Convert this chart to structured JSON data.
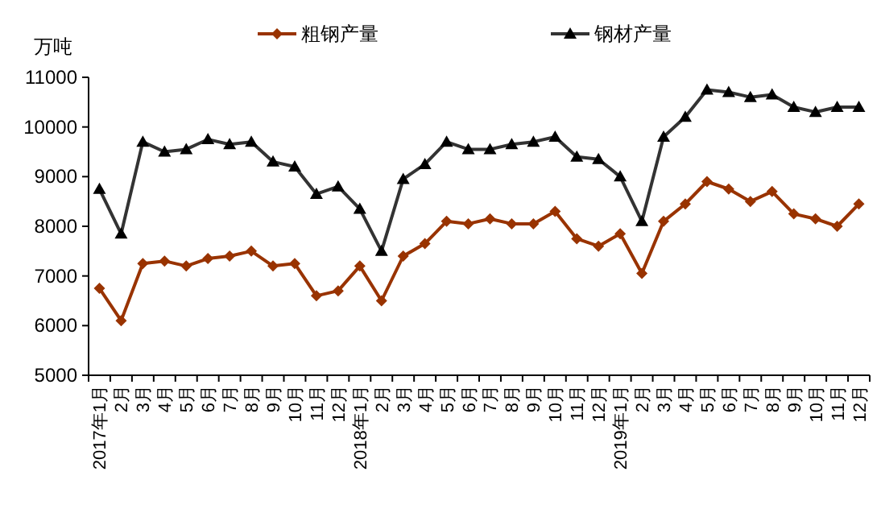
{
  "chart_data": {
    "type": "line",
    "ylabel": "万吨",
    "categories": [
      "2017年1月",
      "2月",
      "3月",
      "4月",
      "5月",
      "6月",
      "7月",
      "8月",
      "9月",
      "10月",
      "11月",
      "12月",
      "2018年1月",
      "2月",
      "3月",
      "4月",
      "5月",
      "6月",
      "7月",
      "8月",
      "9月",
      "10月",
      "11月",
      "12月",
      "2019年1月",
      "2月",
      "3月",
      "4月",
      "5月",
      "6月",
      "7月",
      "8月",
      "9月",
      "10月",
      "11月",
      "12月"
    ],
    "series": [
      {
        "name": "粗钢产量",
        "color": "#993300",
        "marker": "diamond",
        "values": [
          6750,
          6100,
          7250,
          7300,
          7200,
          7350,
          7400,
          7500,
          7200,
          7250,
          6600,
          6700,
          7200,
          6500,
          7400,
          7650,
          8100,
          8050,
          8150,
          8050,
          8050,
          8300,
          7750,
          7600,
          7850,
          7050,
          8100,
          8450,
          8900,
          8750,
          8500,
          8700,
          8250,
          8150,
          8000,
          8450
        ]
      },
      {
        "name": "钢材产量",
        "color": "#333333",
        "marker": "triangle",
        "values": [
          8750,
          7850,
          9700,
          9500,
          9550,
          9750,
          9650,
          9700,
          9300,
          9200,
          8650,
          8800,
          8350,
          7500,
          8950,
          9250,
          9700,
          9550,
          9550,
          9650,
          9700,
          9800,
          9400,
          9350,
          9000,
          8100,
          9800,
          10200,
          10750,
          10700,
          10600,
          10650,
          10400,
          10300,
          10400,
          10400
        ]
      }
    ],
    "ylim": [
      5000,
      11000
    ],
    "yticks": [
      5000,
      6000,
      7000,
      8000,
      9000,
      10000,
      11000
    ],
    "legend": "top"
  }
}
